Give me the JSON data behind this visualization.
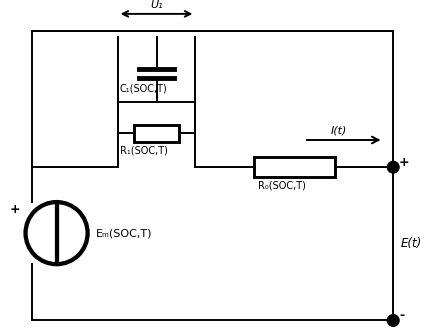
{
  "bg_color": "#ffffff",
  "line_color": "#000000",
  "line_width": 1.4,
  "fig_width": 4.28,
  "fig_height": 3.35,
  "dpi": 100,
  "labels": {
    "U1": "U₁",
    "C1": "C₁(SOC,T)",
    "R1": "R₁(SOC,T)",
    "R0": "R₀(SOC,T)",
    "Em": "Eₘ(SOC,T)",
    "It": "I(t)",
    "Et": "E(t)",
    "plus_top": "+",
    "plus_src": "+",
    "minus_bot": "-"
  }
}
